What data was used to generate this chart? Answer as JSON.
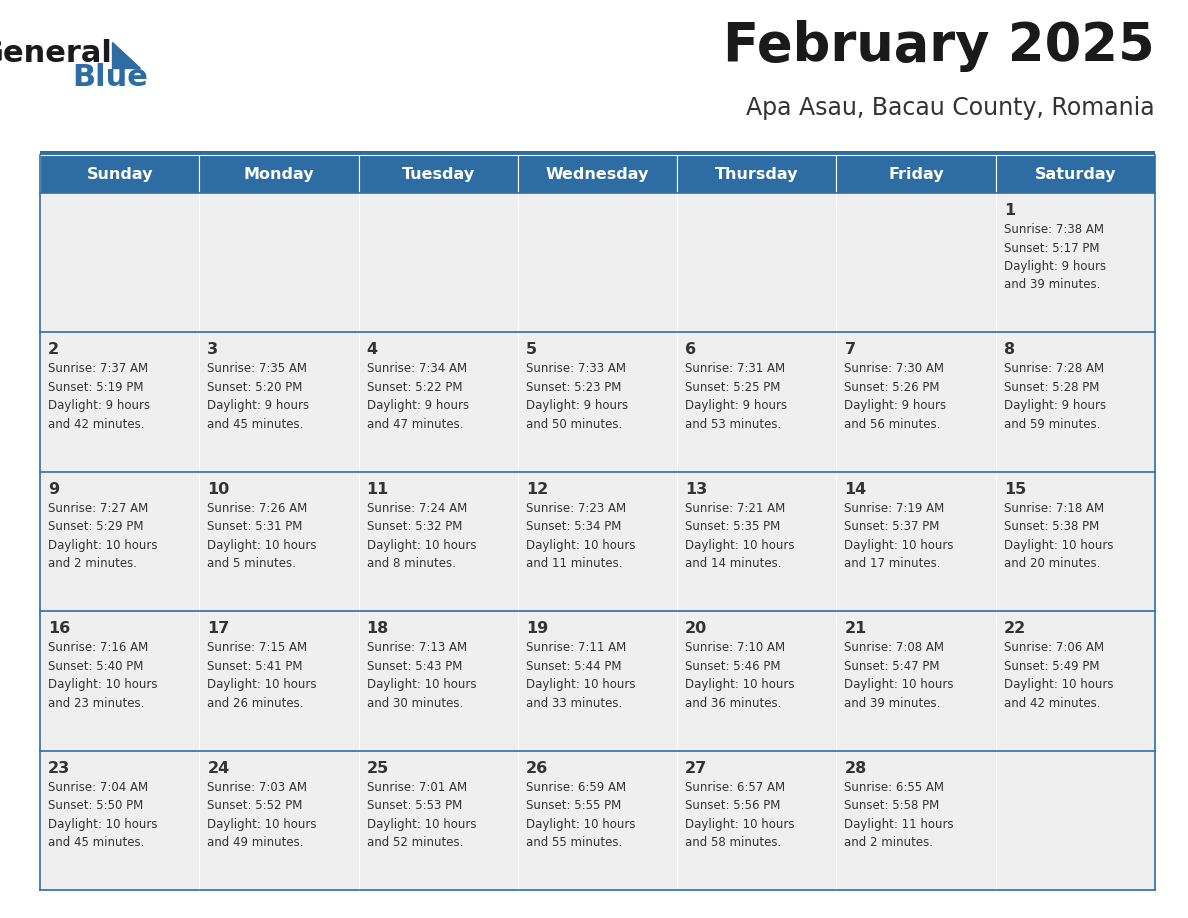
{
  "title": "February 2025",
  "subtitle": "Apa Asau, Bacau County, Romania",
  "header_bg": "#2E6DA4",
  "header_text_color": "#FFFFFF",
  "cell_bg": "#EFEFEF",
  "cell_border_color": "#2E6DA4",
  "text_color": "#333333",
  "day_names": [
    "Sunday",
    "Monday",
    "Tuesday",
    "Wednesday",
    "Thursday",
    "Friday",
    "Saturday"
  ],
  "weeks": [
    [
      {
        "day": "",
        "info": ""
      },
      {
        "day": "",
        "info": ""
      },
      {
        "day": "",
        "info": ""
      },
      {
        "day": "",
        "info": ""
      },
      {
        "day": "",
        "info": ""
      },
      {
        "day": "",
        "info": ""
      },
      {
        "day": "1",
        "info": "Sunrise: 7:38 AM\nSunset: 5:17 PM\nDaylight: 9 hours\nand 39 minutes."
      }
    ],
    [
      {
        "day": "2",
        "info": "Sunrise: 7:37 AM\nSunset: 5:19 PM\nDaylight: 9 hours\nand 42 minutes."
      },
      {
        "day": "3",
        "info": "Sunrise: 7:35 AM\nSunset: 5:20 PM\nDaylight: 9 hours\nand 45 minutes."
      },
      {
        "day": "4",
        "info": "Sunrise: 7:34 AM\nSunset: 5:22 PM\nDaylight: 9 hours\nand 47 minutes."
      },
      {
        "day": "5",
        "info": "Sunrise: 7:33 AM\nSunset: 5:23 PM\nDaylight: 9 hours\nand 50 minutes."
      },
      {
        "day": "6",
        "info": "Sunrise: 7:31 AM\nSunset: 5:25 PM\nDaylight: 9 hours\nand 53 minutes."
      },
      {
        "day": "7",
        "info": "Sunrise: 7:30 AM\nSunset: 5:26 PM\nDaylight: 9 hours\nand 56 minutes."
      },
      {
        "day": "8",
        "info": "Sunrise: 7:28 AM\nSunset: 5:28 PM\nDaylight: 9 hours\nand 59 minutes."
      }
    ],
    [
      {
        "day": "9",
        "info": "Sunrise: 7:27 AM\nSunset: 5:29 PM\nDaylight: 10 hours\nand 2 minutes."
      },
      {
        "day": "10",
        "info": "Sunrise: 7:26 AM\nSunset: 5:31 PM\nDaylight: 10 hours\nand 5 minutes."
      },
      {
        "day": "11",
        "info": "Sunrise: 7:24 AM\nSunset: 5:32 PM\nDaylight: 10 hours\nand 8 minutes."
      },
      {
        "day": "12",
        "info": "Sunrise: 7:23 AM\nSunset: 5:34 PM\nDaylight: 10 hours\nand 11 minutes."
      },
      {
        "day": "13",
        "info": "Sunrise: 7:21 AM\nSunset: 5:35 PM\nDaylight: 10 hours\nand 14 minutes."
      },
      {
        "day": "14",
        "info": "Sunrise: 7:19 AM\nSunset: 5:37 PM\nDaylight: 10 hours\nand 17 minutes."
      },
      {
        "day": "15",
        "info": "Sunrise: 7:18 AM\nSunset: 5:38 PM\nDaylight: 10 hours\nand 20 minutes."
      }
    ],
    [
      {
        "day": "16",
        "info": "Sunrise: 7:16 AM\nSunset: 5:40 PM\nDaylight: 10 hours\nand 23 minutes."
      },
      {
        "day": "17",
        "info": "Sunrise: 7:15 AM\nSunset: 5:41 PM\nDaylight: 10 hours\nand 26 minutes."
      },
      {
        "day": "18",
        "info": "Sunrise: 7:13 AM\nSunset: 5:43 PM\nDaylight: 10 hours\nand 30 minutes."
      },
      {
        "day": "19",
        "info": "Sunrise: 7:11 AM\nSunset: 5:44 PM\nDaylight: 10 hours\nand 33 minutes."
      },
      {
        "day": "20",
        "info": "Sunrise: 7:10 AM\nSunset: 5:46 PM\nDaylight: 10 hours\nand 36 minutes."
      },
      {
        "day": "21",
        "info": "Sunrise: 7:08 AM\nSunset: 5:47 PM\nDaylight: 10 hours\nand 39 minutes."
      },
      {
        "day": "22",
        "info": "Sunrise: 7:06 AM\nSunset: 5:49 PM\nDaylight: 10 hours\nand 42 minutes."
      }
    ],
    [
      {
        "day": "23",
        "info": "Sunrise: 7:04 AM\nSunset: 5:50 PM\nDaylight: 10 hours\nand 45 minutes."
      },
      {
        "day": "24",
        "info": "Sunrise: 7:03 AM\nSunset: 5:52 PM\nDaylight: 10 hours\nand 49 minutes."
      },
      {
        "day": "25",
        "info": "Sunrise: 7:01 AM\nSunset: 5:53 PM\nDaylight: 10 hours\nand 52 minutes."
      },
      {
        "day": "26",
        "info": "Sunrise: 6:59 AM\nSunset: 5:55 PM\nDaylight: 10 hours\nand 55 minutes."
      },
      {
        "day": "27",
        "info": "Sunrise: 6:57 AM\nSunset: 5:56 PM\nDaylight: 10 hours\nand 58 minutes."
      },
      {
        "day": "28",
        "info": "Sunrise: 6:55 AM\nSunset: 5:58 PM\nDaylight: 11 hours\nand 2 minutes."
      },
      {
        "day": "",
        "info": ""
      }
    ]
  ]
}
